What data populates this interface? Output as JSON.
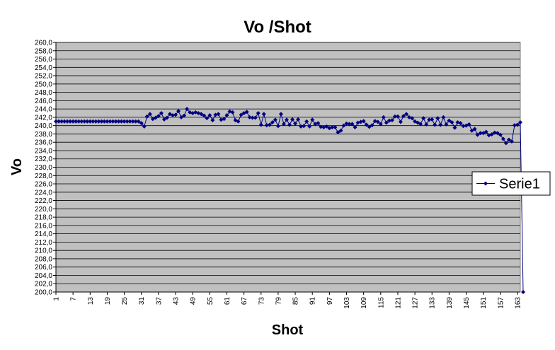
{
  "chart_data": {
    "type": "line",
    "title": "Vo /Shot",
    "xlabel": "Shot",
    "ylabel": "Vo",
    "ylim": [
      200,
      260
    ],
    "ytick_step": 2,
    "xlim": [
      1,
      164
    ],
    "xticks": [
      1,
      7,
      13,
      19,
      25,
      31,
      37,
      43,
      49,
      55,
      61,
      67,
      73,
      79,
      85,
      91,
      97,
      103,
      109,
      115,
      121,
      127,
      133,
      139,
      145,
      151,
      157,
      163
    ],
    "grid": true,
    "legend_position": "right",
    "plot_background": "#c0c0c0",
    "series": [
      {
        "name": "Serie1",
        "color": "#000080",
        "marker": "diamond",
        "values": [
          241.0,
          241.0,
          241.0,
          241.0,
          241.0,
          241.0,
          241.0,
          241.0,
          241.0,
          241.0,
          241.0,
          241.0,
          241.0,
          241.0,
          241.0,
          241.0,
          241.0,
          241.0,
          241.0,
          241.0,
          241.0,
          241.0,
          241.0,
          241.0,
          241.0,
          241.0,
          241.0,
          241.0,
          241.0,
          241.0,
          240.6,
          239.8,
          242.2,
          242.8,
          241.6,
          241.9,
          242.3,
          243.0,
          241.5,
          241.9,
          242.8,
          242.5,
          242.6,
          243.5,
          242.0,
          242.4,
          244.0,
          243.2,
          243.0,
          243.2,
          243.0,
          242.8,
          242.4,
          241.8,
          242.5,
          241.3,
          242.6,
          242.8,
          241.4,
          241.6,
          242.5,
          243.4,
          243.2,
          241.3,
          241.0,
          242.6,
          243.0,
          243.3,
          242.0,
          241.9,
          241.9,
          243.0,
          240.2,
          242.8,
          240.1,
          240.2,
          240.8,
          241.4,
          239.9,
          242.8,
          240.4,
          241.4,
          240.2,
          241.5,
          240.5,
          241.5,
          239.8,
          239.9,
          241.0,
          239.8,
          241.4,
          240.4,
          240.6,
          239.7,
          239.6,
          239.8,
          239.4,
          239.6,
          239.6,
          238.4,
          238.8,
          240.0,
          240.5,
          240.4,
          240.4,
          239.6,
          240.7,
          240.9,
          241.1,
          240.2,
          239.7,
          240.1,
          241.1,
          240.9,
          240.4,
          242.0,
          240.7,
          241.2,
          241.3,
          242.2,
          242.2,
          240.9,
          242.3,
          242.8,
          242.0,
          241.8,
          241.0,
          240.7,
          240.4,
          241.8,
          240.3,
          241.4,
          241.5,
          240.2,
          241.8,
          240.2,
          242.0,
          240.3,
          241.2,
          240.8,
          239.5,
          240.8,
          240.6,
          239.9,
          240.0,
          240.3,
          238.8,
          239.2,
          237.8,
          238.2,
          238.2,
          238.5,
          237.7,
          237.9,
          238.3,
          238.2,
          237.8,
          236.8,
          235.8,
          236.6,
          236.2,
          240.1,
          240.2,
          240.8,
          200.0
        ]
      }
    ]
  }
}
